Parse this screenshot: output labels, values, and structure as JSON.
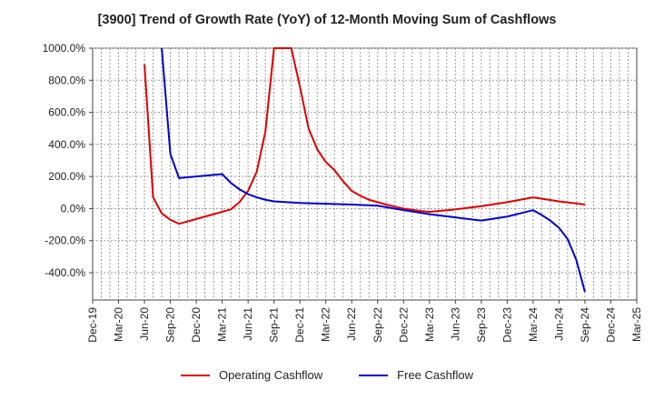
{
  "chart_data": {
    "type": "line",
    "title": "[3900]  Trend of Growth Rate (YoY) of 12-Month Moving Sum of Cashflows",
    "xlabel": "",
    "ylabel": "",
    "x_ticks": [
      "Dec-19",
      "Mar-20",
      "Jun-20",
      "Sep-20",
      "Dec-20",
      "Mar-21",
      "Jun-21",
      "Sep-21",
      "Dec-21",
      "Mar-22",
      "Jun-22",
      "Sep-22",
      "Dec-22",
      "Mar-23",
      "Jun-23",
      "Sep-23",
      "Dec-23",
      "Mar-24",
      "Jun-24",
      "Sep-24",
      "Dec-24",
      "Mar-25"
    ],
    "y_ticks": [
      "1000.0%",
      "800.0%",
      "600.0%",
      "400.0%",
      "200.0%",
      "0.0%",
      "-200.0%",
      "-400.0%"
    ],
    "ylim": [
      -570,
      1000
    ],
    "grid": true,
    "legend_position": "bottom",
    "series": [
      {
        "name": "Operating Cashflow",
        "color": "#dd0000",
        "x": [
          "Jun-20",
          "Jul-20",
          "Aug-20",
          "Sep-20",
          "Oct-20",
          "Nov-20",
          "Dec-20",
          "Jan-21",
          "Feb-21",
          "Mar-21",
          "Apr-21",
          "May-21",
          "Jun-21",
          "Jul-21",
          "Aug-21",
          "Sep-21",
          "Oct-21",
          "Nov-21",
          "Dec-21",
          "Jan-22",
          "Feb-22",
          "Mar-22",
          "Apr-22",
          "May-22",
          "Jun-22",
          "Jul-22",
          "Aug-22",
          "Sep-22",
          "Oct-22",
          "Nov-22",
          "Dec-22",
          "Jan-23",
          "Feb-23",
          "Mar-23",
          "Jun-23",
          "Sep-23",
          "Dec-23",
          "Mar-24",
          "Jun-24",
          "Sep-24"
        ],
        "values": [
          900,
          70,
          -30,
          -70,
          -95,
          -80,
          -65,
          -50,
          -35,
          -20,
          -5,
          40,
          110,
          230,
          480,
          1000,
          1000,
          1000,
          760,
          500,
          370,
          290,
          240,
          170,
          110,
          80,
          55,
          40,
          25,
          12,
          0,
          -8,
          -15,
          -20,
          -5,
          15,
          40,
          70,
          45,
          25
        ]
      },
      {
        "name": "Free Cashflow",
        "color": "#0000cc",
        "x": [
          "Aug-20",
          "Sep-20",
          "Oct-20",
          "Mar-21",
          "Apr-21",
          "May-21",
          "Jun-21",
          "Jul-21",
          "Aug-21",
          "Sep-21",
          "Dec-21",
          "Mar-22",
          "Jun-22",
          "Sep-22",
          "Dec-22",
          "Mar-23",
          "Jun-23",
          "Sep-23",
          "Dec-23",
          "Mar-24",
          "Apr-24",
          "May-24",
          "Jun-24",
          "Jul-24",
          "Aug-24",
          "Sep-24"
        ],
        "values": [
          1000,
          340,
          190,
          215,
          160,
          120,
          90,
          70,
          55,
          45,
          35,
          30,
          25,
          18,
          -10,
          -35,
          -55,
          -75,
          -50,
          -10,
          -40,
          -75,
          -120,
          -190,
          -320,
          -520
        ]
      }
    ]
  }
}
